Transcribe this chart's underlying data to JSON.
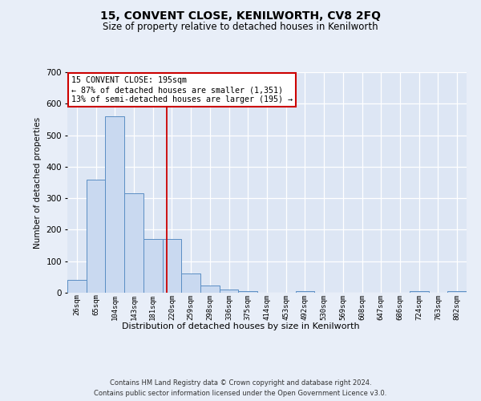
{
  "title": "15, CONVENT CLOSE, KENILWORTH, CV8 2FQ",
  "subtitle": "Size of property relative to detached houses in Kenilworth",
  "xlabel": "Distribution of detached houses by size in Kenilworth",
  "ylabel": "Number of detached properties",
  "bar_labels": [
    "26sqm",
    "65sqm",
    "104sqm",
    "143sqm",
    "181sqm",
    "220sqm",
    "259sqm",
    "298sqm",
    "336sqm",
    "375sqm",
    "414sqm",
    "453sqm",
    "492sqm",
    "530sqm",
    "569sqm",
    "608sqm",
    "647sqm",
    "686sqm",
    "724sqm",
    "763sqm",
    "802sqm"
  ],
  "bar_values": [
    40,
    358,
    560,
    315,
    170,
    170,
    60,
    22,
    10,
    5,
    0,
    0,
    5,
    0,
    0,
    0,
    0,
    0,
    5,
    0,
    5
  ],
  "bar_color": "#c9d9f0",
  "bar_edge_color": "#5b8ec4",
  "bg_color": "#dde6f4",
  "grid_color": "#ffffff",
  "fig_bg_color": "#e8eef8",
  "redline_x": 4.74,
  "annotation_text": "15 CONVENT CLOSE: 195sqm\n← 87% of detached houses are smaller (1,351)\n13% of semi-detached houses are larger (195) →",
  "annotation_box_color": "#ffffff",
  "annotation_border_color": "#cc0000",
  "ylim": [
    0,
    700
  ],
  "yticks": [
    0,
    100,
    200,
    300,
    400,
    500,
    600,
    700
  ],
  "footer": "Contains HM Land Registry data © Crown copyright and database right 2024.\nContains public sector information licensed under the Open Government Licence v3.0."
}
